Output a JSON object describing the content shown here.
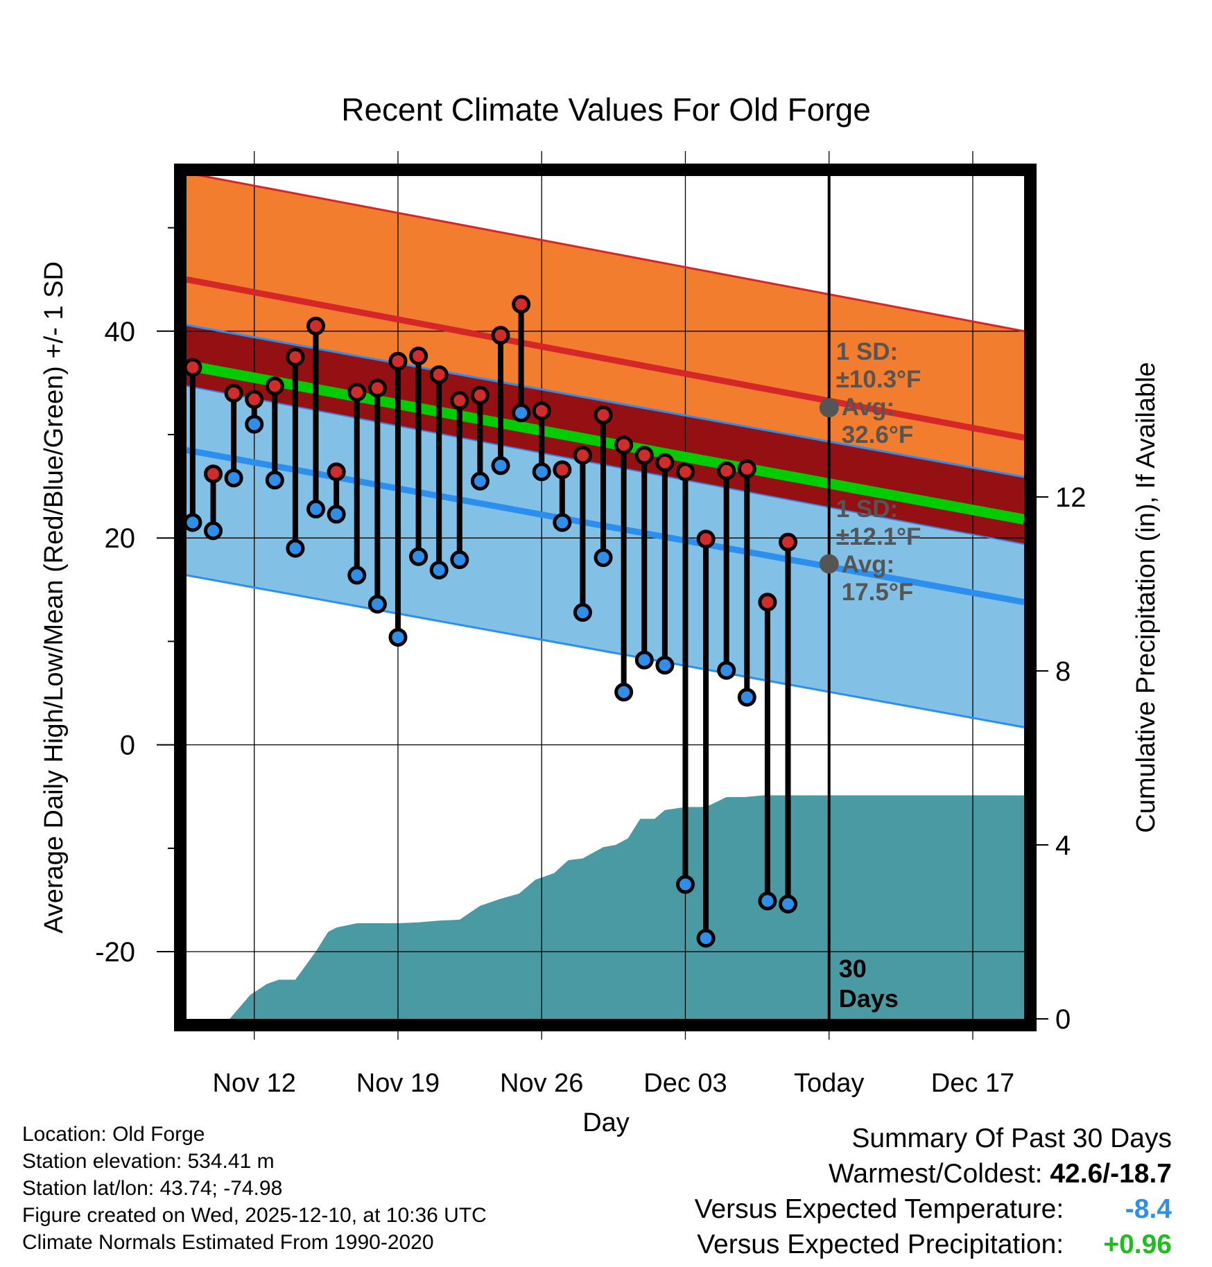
{
  "chart_data": {
    "type": "line",
    "title": "Recent Climate Values For Old Forge",
    "xlabel": "Day",
    "ylabel_left": "Average Daily High/Low/Mean (Red/Blue/Green) +/- 1 SD",
    "ylabel_right": "Cumulative Precipitation (in), If Available",
    "ylim_left": [
      -26.5,
      55
    ],
    "ylim_right": [
      0,
      19.38
    ],
    "left_ticks": [
      "40",
      "20",
      "0",
      "-20"
    ],
    "left_tick_values": [
      40,
      20,
      0,
      -20
    ],
    "right_ticks": [
      "12",
      "8",
      "4",
      "0"
    ],
    "right_tick_values": [
      12,
      8,
      4,
      0
    ],
    "x_tick_labels": [
      "Nov 12",
      "Nov 19",
      "Nov 26",
      "Dec 03",
      "Today",
      "Dec 17"
    ],
    "x_tick_days": [
      12,
      19,
      26,
      33,
      40,
      47
    ],
    "x_range_days": [
      8.7,
      49.5
    ],
    "today_day": 40,
    "window_label": "30 Days",
    "normals": {
      "days": [
        8.7,
        49.5
      ],
      "high_mean": [
        45,
        29.7
      ],
      "high_sd": 10.3,
      "low_mean": [
        28.5,
        13.8
      ],
      "low_sd": 12.1,
      "mean": [
        36.7,
        21.8
      ]
    },
    "high_annotation": [
      "1 SD:",
      "±10.3°F",
      "Avg:",
      "32.6°F"
    ],
    "low_annotation": [
      "1 SD:",
      "±12.1°F",
      "Avg:",
      "17.5°F"
    ],
    "high_avg_value": 32.6,
    "low_avg_value": 17.5,
    "days": [
      9,
      10,
      11,
      12,
      13,
      14,
      15,
      16,
      17,
      18,
      19,
      20,
      21,
      22,
      23,
      24,
      25,
      26,
      27,
      28,
      29,
      30,
      31,
      32,
      33,
      34,
      35,
      36,
      37,
      38
    ],
    "series": [
      {
        "name": "Daily High",
        "color": "#d12b2b",
        "values": [
          36.5,
          26.2,
          34.0,
          33.4,
          34.7,
          37.5,
          40.5,
          26.4,
          34.1,
          34.5,
          37.1,
          37.6,
          35.8,
          33.3,
          33.8,
          39.6,
          42.6,
          32.3,
          26.6,
          28.0,
          31.9,
          29.0,
          28.0,
          27.3,
          26.4,
          19.9,
          26.5,
          26.7,
          13.8,
          19.6
        ]
      },
      {
        "name": "Daily Low",
        "color": "#2f8fe8",
        "values": [
          21.5,
          20.7,
          25.8,
          31.0,
          25.6,
          19.0,
          22.8,
          22.3,
          16.4,
          13.6,
          10.4,
          18.2,
          16.9,
          17.9,
          25.5,
          27.0,
          32.1,
          26.4,
          21.5,
          12.8,
          18.1,
          5.1,
          8.2,
          7.7,
          -13.5,
          -18.7,
          7.2,
          4.6,
          -15.1,
          -15.4
        ]
      }
    ],
    "precip_days": [
      8.7,
      9.5,
      10.8,
      11.8,
      12.6,
      13.2,
      14.0,
      15.0,
      15.6,
      16.0,
      17.0,
      18.0,
      19.0,
      20.0,
      21.0,
      22.0,
      23.0,
      24.0,
      24.9,
      25.7,
      26.6,
      27.3,
      28.0,
      29.0,
      29.6,
      30.2,
      30.8,
      31.5,
      32.0,
      33.0,
      34.0,
      35.0,
      35.9,
      36.8,
      37.8,
      38.5,
      49.5
    ],
    "precip_values": [
      0,
      0,
      0,
      0.55,
      0.8,
      0.9,
      0.9,
      1.55,
      2.0,
      2.1,
      2.2,
      2.2,
      2.2,
      2.22,
      2.26,
      2.28,
      2.6,
      2.76,
      2.88,
      3.2,
      3.35,
      3.65,
      3.69,
      3.95,
      4.0,
      4.15,
      4.6,
      4.6,
      4.8,
      4.87,
      4.87,
      5.1,
      5.1,
      5.14,
      5.14,
      5.14,
      5.14
    ],
    "colors": {
      "high_band": "#f37d2e",
      "high_line": "#d62728",
      "overlap_band": "#951013",
      "low_band": "#82c0e6",
      "low_line": "#2b8ff0",
      "mean_line": "#00cc00",
      "precip_fill": "#4a9aa3",
      "annotation": "#555555",
      "positive_precip": "#22bb22",
      "negative_temp": "#2f8fe8"
    }
  },
  "footer": {
    "location": "Location: Old Forge",
    "elevation": "Station elevation: 534.41 m",
    "latlon": "Station lat/lon: 43.74; -74.98",
    "created": "Figure created on Wed, 2025-12-10, at 10:36 UTC",
    "normals": "Climate Normals Estimated From 1990-2020"
  },
  "summary": {
    "title": "Summary Of Past 30 Days",
    "warm_cold_label": "Warmest/Coldest:",
    "warm_cold_value": "42.6/-18.7",
    "temp_label": "Versus Expected Temperature:",
    "temp_value": "-8.4",
    "precip_label": "Versus Expected Precipitation:",
    "precip_value": "+0.96"
  }
}
